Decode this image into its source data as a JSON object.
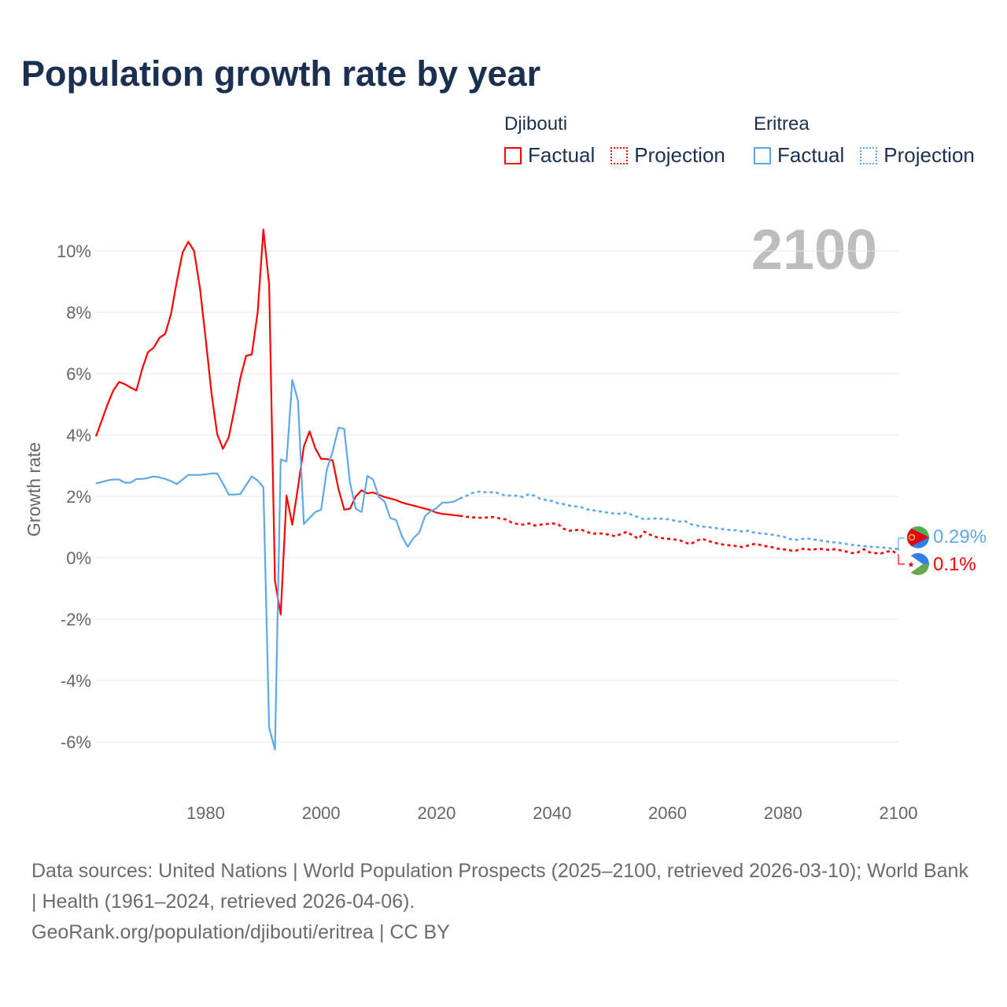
{
  "title": "Population growth rate by year",
  "legend": {
    "groups": [
      {
        "country": "Djibouti",
        "factual": "Factual",
        "projection": "Projection",
        "color": "#ff0000"
      },
      {
        "country": "Eritrea",
        "factual": "Factual",
        "projection": "Projection",
        "color": "#5ea8ea"
      }
    ]
  },
  "footer": {
    "sources": "Data sources: United Nations | World Population Prospects (2025–2100, retrieved 2026-03-10); World Bank | Health (1961–2024, retrieved 2026-04-06).",
    "credit": "GeoRank.org/population/djibouti/eritrea | CC BY"
  },
  "chart_data": {
    "type": "line",
    "title": "Population growth rate by year",
    "ylabel": "Growth rate",
    "xlabel": "",
    "year_label": "2100",
    "xlim": [
      1961,
      2100
    ],
    "ylim": [
      -7.5,
      10.9
    ],
    "x_ticks": [
      1980,
      2000,
      2020,
      2040,
      2060,
      2080,
      2100
    ],
    "x_tick_labels": [
      "1980",
      "2000",
      "2020",
      "2040",
      "2060",
      "2080",
      "2100"
    ],
    "y_ticks": [
      -6,
      -4,
      -2,
      0,
      2,
      4,
      6,
      8,
      10
    ],
    "y_tick_labels": [
      "-6%",
      "-4%",
      "-2%",
      "0%",
      "2%",
      "4%",
      "6%",
      "8%",
      "10%"
    ],
    "grid": true,
    "legend_position": "top-right",
    "end_labels": {
      "Eritrea": "0.29%",
      "Djibouti": "0.1%"
    },
    "series": [
      {
        "name": "Djibouti",
        "color": "#ff0000",
        "factual_start": 1961,
        "factual": [
          3.96,
          4.47,
          5.0,
          5.45,
          5.73,
          5.66,
          5.55,
          5.45,
          6.15,
          6.7,
          6.85,
          7.17,
          7.3,
          7.95,
          9.0,
          9.95,
          10.3,
          10.0,
          8.8,
          7.15,
          5.37,
          4.03,
          3.55,
          3.93,
          4.86,
          5.86,
          6.58,
          6.63,
          8.0,
          10.7,
          8.9,
          -0.75,
          -1.85,
          2.03,
          1.08,
          2.3,
          3.62,
          4.12,
          3.57,
          3.22,
          3.22,
          3.17,
          2.25,
          1.57,
          1.6,
          2.0,
          2.2,
          2.1,
          2.13,
          2.05,
          1.98,
          1.93,
          1.88,
          1.8,
          1.75,
          1.7,
          1.65,
          1.6,
          1.55,
          1.47,
          1.43,
          1.41,
          1.39,
          1.37
        ],
        "projection_start": 2025,
        "projection": [
          1.34,
          1.32,
          1.31,
          1.3,
          1.32,
          1.33,
          1.28,
          1.25,
          1.15,
          1.1,
          1.08,
          1.12,
          1.05,
          1.08,
          1.1,
          1.12,
          1.1,
          0.95,
          0.88,
          0.9,
          0.92,
          0.85,
          0.78,
          0.8,
          0.78,
          0.75,
          0.7,
          0.78,
          0.85,
          0.72,
          0.62,
          0.85,
          0.75,
          0.68,
          0.64,
          0.62,
          0.6,
          0.58,
          0.5,
          0.45,
          0.55,
          0.62,
          0.55,
          0.5,
          0.45,
          0.42,
          0.4,
          0.38,
          0.35,
          0.4,
          0.45,
          0.42,
          0.38,
          0.35,
          0.3,
          0.28,
          0.25,
          0.22,
          0.28,
          0.3,
          0.25,
          0.3,
          0.28,
          0.26,
          0.28,
          0.24,
          0.2,
          0.15,
          0.18,
          0.28,
          0.18,
          0.15,
          0.14,
          0.2,
          0.22,
          0.1
        ]
      },
      {
        "name": "Eritrea",
        "color": "#5ea8ea",
        "factual_start": 1961,
        "factual": [
          2.42,
          2.47,
          2.52,
          2.55,
          2.55,
          2.45,
          2.45,
          2.57,
          2.57,
          2.6,
          2.65,
          2.62,
          2.57,
          2.5,
          2.4,
          2.55,
          2.7,
          2.7,
          2.7,
          2.72,
          2.75,
          2.75,
          2.42,
          2.06,
          2.06,
          2.08,
          2.37,
          2.65,
          2.52,
          2.3,
          -5.53,
          -6.25,
          3.2,
          3.14,
          5.8,
          5.12,
          1.1,
          1.3,
          1.49,
          1.57,
          2.88,
          3.47,
          4.24,
          4.2,
          2.44,
          1.6,
          1.49,
          2.67,
          2.55,
          1.98,
          1.83,
          1.29,
          1.23,
          0.7,
          0.36,
          0.64,
          0.82,
          1.36,
          1.52,
          1.62,
          1.8,
          1.8,
          1.83,
          1.93
        ],
        "projection_start": 2025,
        "projection": [
          2.0,
          2.1,
          2.15,
          2.15,
          2.12,
          2.15,
          2.08,
          2.02,
          2.03,
          2.02,
          1.98,
          2.08,
          2.02,
          1.92,
          1.88,
          1.85,
          1.78,
          1.75,
          1.7,
          1.68,
          1.65,
          1.58,
          1.55,
          1.52,
          1.5,
          1.45,
          1.45,
          1.42,
          1.48,
          1.38,
          1.32,
          1.25,
          1.28,
          1.28,
          1.27,
          1.26,
          1.22,
          1.18,
          1.2,
          1.1,
          1.05,
          1.02,
          1.0,
          0.98,
          0.95,
          0.92,
          0.9,
          0.9,
          0.85,
          0.88,
          0.82,
          0.8,
          0.78,
          0.76,
          0.72,
          0.7,
          0.62,
          0.58,
          0.6,
          0.64,
          0.6,
          0.58,
          0.55,
          0.52,
          0.5,
          0.48,
          0.45,
          0.42,
          0.4,
          0.38,
          0.36,
          0.35,
          0.34,
          0.32,
          0.3,
          0.29
        ]
      }
    ]
  }
}
